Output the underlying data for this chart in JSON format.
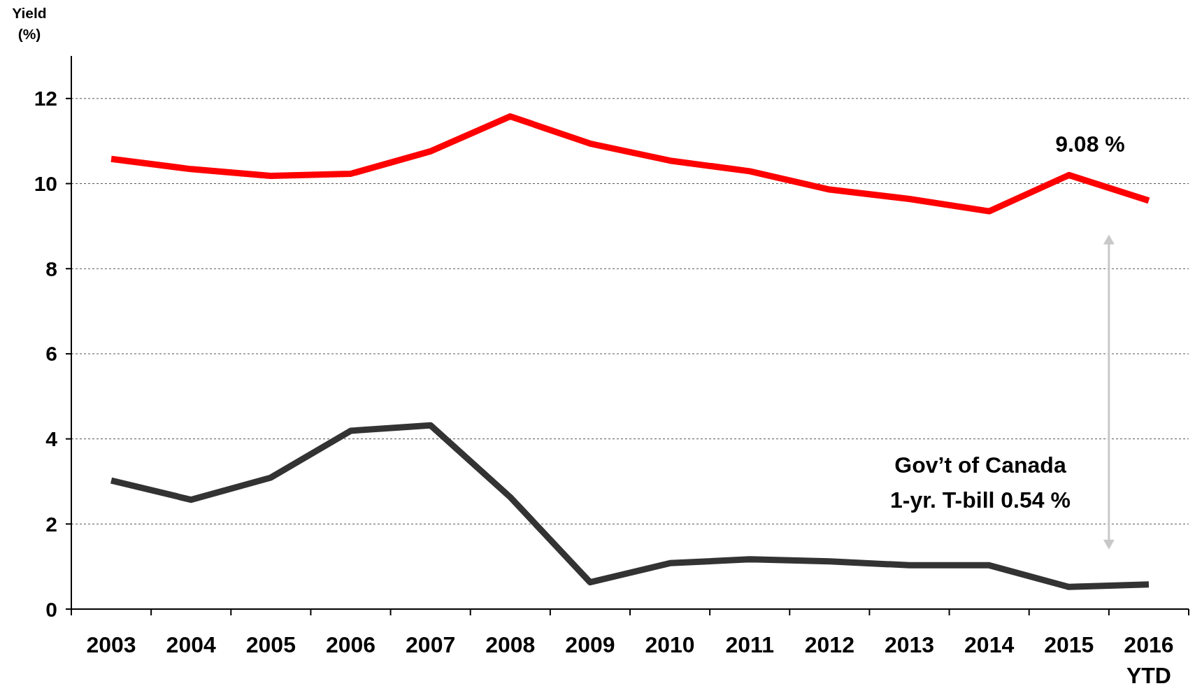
{
  "chart_data": {
    "type": "line",
    "ylabel": "Yield\n(%)",
    "categories": [
      "2003",
      "2004",
      "2005",
      "2006",
      "2007",
      "2008",
      "2009",
      "2010",
      "2011",
      "2012",
      "2013",
      "2014",
      "2015",
      "2016\nYTD"
    ],
    "series": [
      {
        "color": "#ff0000",
        "values": [
          10.58,
          10.34,
          10.18,
          10.23,
          10.76,
          11.58,
          10.94,
          10.54,
          10.29,
          9.86,
          9.64,
          9.35,
          10.2,
          9.6
        ]
      },
      {
        "color": "#333333",
        "values": [
          3.02,
          2.57,
          3.09,
          4.19,
          4.32,
          2.63,
          0.63,
          1.08,
          1.17,
          1.12,
          1.03,
          1.03,
          0.52,
          0.58
        ]
      }
    ],
    "ylim": [
      0,
      13
    ],
    "yticks": [
      0,
      2,
      4,
      6,
      8,
      10,
      12
    ],
    "grid": "y",
    "line_style": "solid",
    "annotations": [
      "9.08 %",
      "Gov’t  of Canada\n1-yr. T-bill 0.54 %"
    ]
  }
}
